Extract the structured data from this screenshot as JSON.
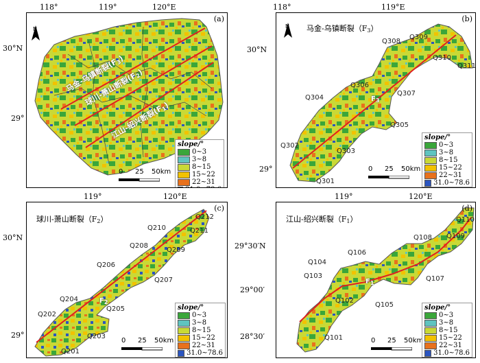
{
  "legend": {
    "title": "slope/°",
    "classes": [
      {
        "label": "0~3",
        "color": "#3aa63a"
      },
      {
        "label": "3~8",
        "color": "#5fc4c0"
      },
      {
        "label": "8~15",
        "color": "#c9d936"
      },
      {
        "label": "15~22",
        "color": "#f2c200"
      },
      {
        "label": "22~31",
        "color": "#e8711c"
      },
      {
        "label": "31.0~78.6",
        "color": "#2b55c0"
      }
    ]
  },
  "scale": {
    "labels": [
      "0",
      "25",
      "50km"
    ]
  },
  "fault_color": "#e02020",
  "panels": {
    "a": {
      "letter": "(a)",
      "x_ticks": [
        "118°",
        "119°",
        "120°E"
      ],
      "y_ticks": [
        "30°N",
        "29°"
      ],
      "fault_labels": [
        "马金-乌镇断裂(F",
        "球川-萧山断裂(F",
        "江山-绍兴断裂(F"
      ],
      "fault_subs": [
        "3",
        "2",
        "1"
      ],
      "fault_close": ")"
    },
    "b": {
      "letter": "(b)",
      "title": "马金-乌镇断裂（F",
      "title_sub": "3",
      "title_close": "）",
      "x_ticks": [
        "118°",
        "119°E"
      ],
      "y_ticks": [
        "30°N",
        "29°"
      ],
      "fault_tag": "F",
      "fault_tag_sub": "3",
      "stations": [
        "Q301",
        "Q302",
        "Q303",
        "Q304",
        "Q305",
        "Q306",
        "Q307",
        "Q308",
        "Q309",
        "Q310",
        "Q311"
      ]
    },
    "c": {
      "letter": "(c)",
      "title": "球川-萧山断裂（F",
      "title_sub": "2",
      "title_close": "）",
      "x_ticks": [
        "119°",
        "120°E"
      ],
      "y_ticks": [
        "30°N",
        "29°"
      ],
      "fault_tag": "F",
      "fault_tag_sub": "2",
      "stations": [
        "Q201",
        "Q202",
        "Q203",
        "Q204",
        "Q205",
        "Q206",
        "Q207",
        "Q208",
        "Q209",
        "Q210",
        "Q211",
        "Q212"
      ]
    },
    "d": {
      "letter": "(d)",
      "title": "江山-绍兴断裂（F",
      "title_sub": "1",
      "title_close": "）",
      "x_ticks": [
        "119°",
        "120°E"
      ],
      "y_ticks": [
        "29°30′N",
        "29°00′",
        "28°30′"
      ],
      "fault_tag": "F",
      "fault_tag_sub": "1",
      "stations": [
        "Q101",
        "Q102",
        "Q103",
        "Q104",
        "Q105",
        "Q106",
        "Q107",
        "Q108",
        "Q109",
        "Q110"
      ]
    }
  }
}
